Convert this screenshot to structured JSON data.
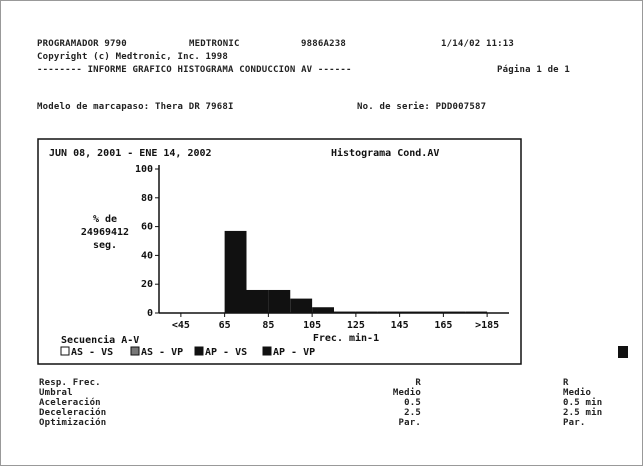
{
  "header": {
    "programmer": "PROGRAMADOR 9790",
    "maker": "MEDTRONIC",
    "code": "9886A238",
    "datetime": "1/14/02 11:13",
    "copyright": "Copyright (c) Medtronic, Inc. 1998",
    "report_title": "-------- INFORME GRAFICO HISTOGRAMA CONDUCCION AV ------",
    "page": "Página 1 de 1",
    "model": "Modelo de marcapaso: Thera DR 7968I",
    "serial": "No. de serie: PDD007587"
  },
  "chart_data": {
    "type": "histogram",
    "title": "JUN 08, 2001 - ENE 14, 2002",
    "subtitle": "Histograma Cond.AV",
    "ylabel_lines": [
      "% de",
      "24969412",
      "seg."
    ],
    "xlabel": "Frec. min-1",
    "bins": [
      45,
      55,
      65,
      75,
      85,
      95,
      105,
      115,
      125,
      135,
      145,
      155,
      165,
      175,
      185
    ],
    "counts": [
      0,
      0,
      57,
      16,
      16,
      10,
      4,
      1,
      1,
      1,
      1,
      1,
      1,
      1
    ],
    "color": "#111111",
    "xlim": [
      35,
      195
    ],
    "ylim": [
      0,
      100
    ],
    "xticks": [
      {
        "value": 45,
        "label": "<45"
      },
      65,
      85,
      105,
      125,
      145,
      165,
      {
        "value": 185,
        "label": ">185"
      }
    ],
    "yticks": [
      0,
      20,
      40,
      60,
      80,
      100
    ],
    "legend": {
      "title": "Secuencia A-V",
      "items": [
        "AS - VS",
        "AS - VP",
        "AP - VS",
        "AP - VP"
      ]
    }
  },
  "parameters": {
    "rows": [
      [
        "Resp. Frec.",
        "R",
        "R"
      ],
      [
        "Umbral",
        "Medio",
        "Medio"
      ],
      [
        "Aceleración",
        "0.5",
        "0.5 min"
      ],
      [
        "Deceleración",
        "2.5",
        "2.5 min"
      ],
      [
        "Optimización",
        "Par.",
        "Par."
      ]
    ]
  }
}
